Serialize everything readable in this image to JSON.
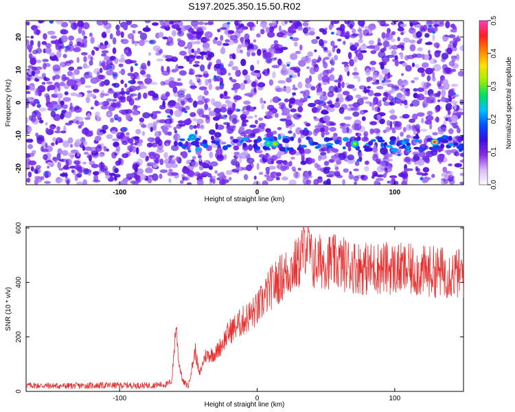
{
  "title": "S197.2025.350.15.50.R02",
  "chart_data": [
    {
      "type": "heatmap",
      "xlabel": "Height of straight line (km)",
      "ylabel": "Frequency (Hz)",
      "xlim": [
        -168,
        150
      ],
      "ylim": [
        -25,
        25
      ],
      "x_ticks": [
        -100,
        0,
        100
      ],
      "y_ticks": [
        -20,
        -10,
        0,
        10,
        20
      ],
      "grid": false,
      "colorbar": {
        "label": "Normalized spectral amplitude",
        "range": [
          0,
          0.5
        ],
        "ticks": [
          0.0,
          0.1,
          0.2,
          0.3,
          0.4,
          0.5
        ],
        "tick_labels": [
          "0.0",
          "0.1",
          "0.2",
          "0.3",
          "0.4",
          "0.5"
        ],
        "colormap": [
          "#ffffff",
          "#d9b8ff",
          "#8a2be2",
          "#3a10e0",
          "#0050ff",
          "#00c0ff",
          "#00e060",
          "#a0f000",
          "#ffe000",
          "#ff8000",
          "#ff2020",
          "#ff40c0"
        ]
      },
      "signal_band": {
        "frequency_hz": -12.5,
        "x_start": -60,
        "x_end": 150,
        "peaks": [
          {
            "x": -47,
            "y": -10.5,
            "value": 0.25
          },
          {
            "x": 8,
            "y": -12.5,
            "value": 0.3
          },
          {
            "x": 13,
            "y": -12.5,
            "value": 0.38
          },
          {
            "x": 71,
            "y": -12.5,
            "value": 0.35
          },
          {
            "x": 129,
            "y": -12.0,
            "value": 0.47
          }
        ]
      }
    },
    {
      "type": "line",
      "xlabel": "Height of straight line (km)",
      "ylabel": "SNR (10 * v/v)",
      "xlim": [
        -168,
        150
      ],
      "ylim": [
        0,
        605
      ],
      "x_ticks": [
        -100,
        0,
        100
      ],
      "y_ticks": [
        0,
        200,
        400,
        600
      ],
      "grid": false,
      "color": "#e83030",
      "x": [
        -168,
        -140,
        -110,
        -80,
        -65,
        -62,
        -59,
        -57,
        -54,
        -50,
        -45,
        -42,
        -38,
        -30,
        -20,
        -10,
        0,
        10,
        20,
        30,
        36,
        40,
        50,
        60,
        70,
        80,
        90,
        100,
        110,
        120,
        130,
        140,
        150
      ],
      "values": [
        22,
        20,
        22,
        22,
        26,
        40,
        250,
        110,
        35,
        20,
        150,
        60,
        130,
        140,
        220,
        260,
        300,
        380,
        430,
        470,
        560,
        470,
        480,
        470,
        460,
        450,
        455,
        450,
        445,
        440,
        440,
        435,
        430
      ]
    }
  ]
}
